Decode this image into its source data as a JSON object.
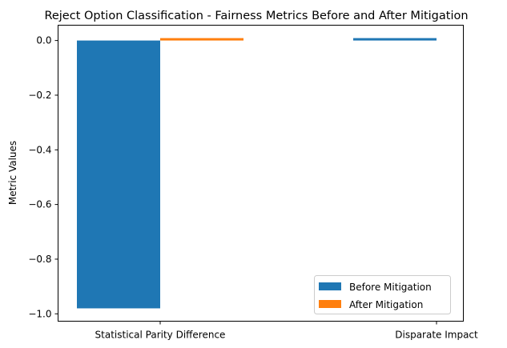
{
  "chart_data": {
    "type": "bar",
    "title": "Reject Option Classification - Fairness Metrics Before and After Mitigation",
    "xlabel": "",
    "ylabel": "Metric Values",
    "categories": [
      "Statistical Parity Difference",
      "Disparate Impact"
    ],
    "series": [
      {
        "name": "Before Mitigation",
        "color": "#1f77b4",
        "values": [
          -0.98,
          0.008
        ]
      },
      {
        "name": "After Mitigation",
        "color": "#ff7f0e",
        "values": [
          0.006,
          0.0
        ]
      }
    ],
    "ylim": [
      -1.027,
      0.056
    ],
    "yticks": [
      0.0,
      -0.2,
      -0.4,
      -0.6,
      -0.8,
      -1.0
    ],
    "ytick_labels": [
      "0.0",
      "−0.2",
      "−0.4",
      "−0.6",
      "−0.8",
      "−1.0"
    ],
    "grid": false,
    "legend_position": "lower-right"
  }
}
